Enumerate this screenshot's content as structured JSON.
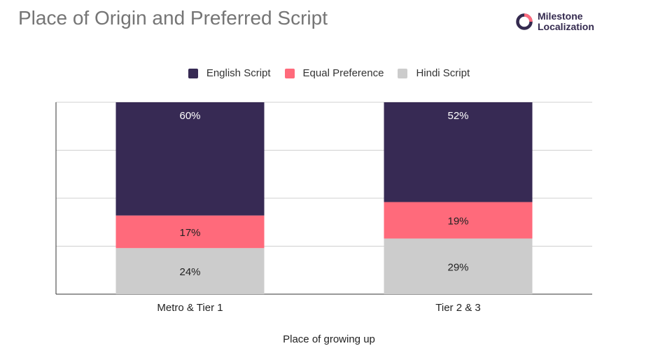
{
  "title": "Place of Origin and Preferred Script",
  "brand": {
    "line1": "Milestone",
    "line2": "Localization",
    "mark_color": "#342a4f",
    "accent_color": "#ff6b7e"
  },
  "chart_data": {
    "type": "bar",
    "stacked": true,
    "xlabel": "Place of growing up",
    "ylabel": "",
    "ylim": [
      0,
      100
    ],
    "grid": true,
    "legend_position": "top-center",
    "categories": [
      "Metro & Tier 1",
      "Tier 2 & 3"
    ],
    "series": [
      {
        "name": "English Script",
        "color": "#372a54",
        "values": [
          60,
          52
        ],
        "labels": [
          "60%",
          "52%"
        ]
      },
      {
        "name": "Equal Preference",
        "color": "#ff6a7b",
        "values": [
          17,
          19
        ],
        "labels": [
          "17%",
          "19%"
        ]
      },
      {
        "name": "Hindi Script",
        "color": "#cccccc",
        "values": [
          24,
          29
        ],
        "labels": [
          "24%",
          "29%"
        ]
      }
    ]
  }
}
